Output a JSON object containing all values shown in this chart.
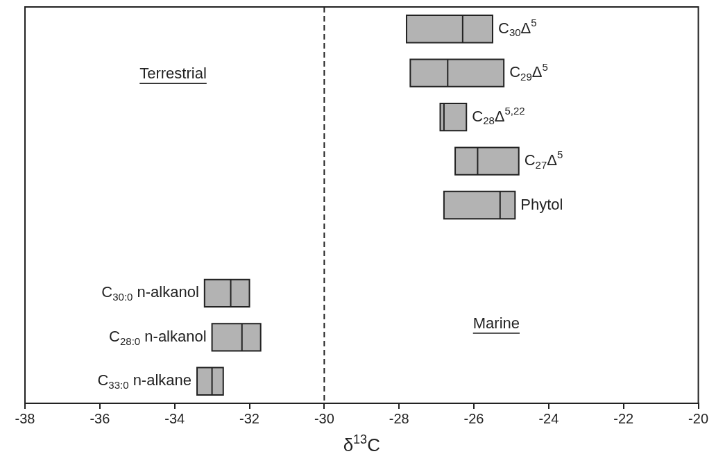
{
  "chart_data": {
    "type": "box",
    "orientation": "horizontal",
    "xlabel": "δ$^{13}$C",
    "color": "#b3b3b3",
    "categories": [
      "C$_{30}$Δ$^{5}$",
      "C$_{29}$Δ$^{5}$",
      "C$_{28}$Δ$^{5,22}$",
      "C$_{27}$Δ$^{5}$",
      "Phytol",
      null,
      "C$_{30:0}$ n-alkanol",
      "C$_{28:0}$ n-alkanol",
      "C$_{33:0}$ n-alkane"
    ],
    "boxes": [
      {
        "low": -27.8,
        "q1": -27.8,
        "median": -26.3,
        "q3": -25.5,
        "high": -25.5
      },
      {
        "low": -27.7,
        "q1": -27.7,
        "median": -26.7,
        "q3": -25.2,
        "high": -25.2
      },
      {
        "low": -26.9,
        "q1": -26.9,
        "median": -26.8,
        "q3": -26.2,
        "high": -26.2
      },
      {
        "low": -26.5,
        "q1": -26.5,
        "median": -25.9,
        "q3": -24.8,
        "high": -24.8
      },
      {
        "low": -26.8,
        "q1": -26.8,
        "median": -25.3,
        "q3": -24.9,
        "high": -24.9
      },
      null,
      {
        "low": -33.2,
        "q1": -33.2,
        "median": -32.5,
        "q3": -32.0,
        "high": -32.0
      },
      {
        "low": -33.0,
        "q1": -33.0,
        "median": -32.2,
        "q3": -31.7,
        "high": -31.7
      },
      {
        "low": -33.4,
        "q1": -33.4,
        "median": -33.0,
        "q3": -32.7,
        "high": -32.7
      }
    ],
    "xlim": [
      -38,
      -20
    ],
    "xticks": [
      -38,
      -36,
      -34,
      -32,
      -30,
      -28,
      -26,
      -24,
      -22,
      -20
    ],
    "ref_lines": [
      {
        "axis": "x",
        "value": -30,
        "line_style": "dashed"
      }
    ],
    "annotations": [
      "Terrestrial",
      "Marine"
    ],
    "grid": false,
    "legend": false,
    "tick_labels": "x"
  }
}
